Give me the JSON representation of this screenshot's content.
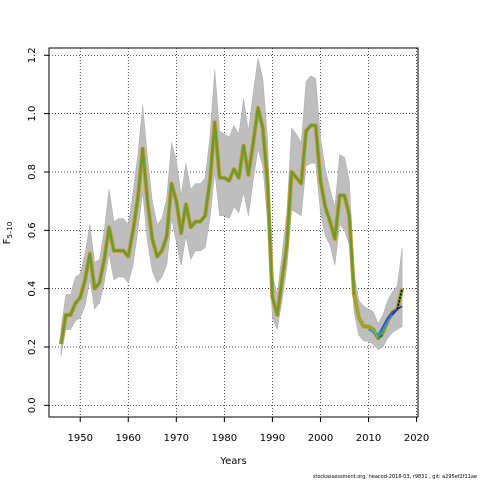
{
  "chart_data": {
    "type": "line",
    "title": "",
    "xlabel": "Years",
    "ylabel_main": "F",
    "ylabel_sub": "5–10",
    "xlim": [
      1943.5,
      2020.3
    ],
    "ylim": [
      -0.04,
      1.225
    ],
    "x_ticks": [
      1950,
      1960,
      1970,
      1980,
      1990,
      2000,
      2010,
      2020
    ],
    "y_ticks": [
      0.0,
      0.2,
      0.4,
      0.6,
      0.8,
      1.0,
      1.2
    ],
    "grid": true,
    "footer": "stockassessment.org, neacod-2018-03, r9831 , git: a295ef2f11ae",
    "colors": {
      "band": "#bebebe",
      "band_edge": "#a8a8a8",
      "main_line": "#6b9b2a",
      "main_line_outline": "#c79a3a",
      "retro_series": [
        "#1a2a9a",
        "#2a4ac0",
        "#3a8ad8",
        "#2aa0a0",
        "#1a7a3a",
        "#9ab02a"
      ],
      "last_year": "#000000"
    },
    "x": [
      1946,
      1947,
      1948,
      1949,
      1950,
      1951,
      1952,
      1953,
      1954,
      1955,
      1956,
      1957,
      1958,
      1959,
      1960,
      1961,
      1962,
      1963,
      1964,
      1965,
      1966,
      1967,
      1968,
      1969,
      1970,
      1971,
      1972,
      1973,
      1974,
      1975,
      1976,
      1977,
      1978,
      1979,
      1980,
      1981,
      1982,
      1983,
      1984,
      1985,
      1986,
      1987,
      1988,
      1989,
      1990,
      1991,
      1992,
      1993,
      1994,
      1995,
      1996,
      1997,
      1998,
      1999,
      2000,
      2001,
      2002,
      2003,
      2004,
      2005,
      2006,
      2007,
      2008,
      2009,
      2010,
      2011,
      2012,
      2013,
      2014,
      2015,
      2016,
      2017
    ],
    "series": [
      {
        "values": [
          0.21,
          0.31,
          0.31,
          0.35,
          0.37,
          0.43,
          0.52,
          0.4,
          0.42,
          0.5,
          0.61,
          0.53,
          0.53,
          0.53,
          0.51,
          0.6,
          0.71,
          0.88,
          0.7,
          0.57,
          0.51,
          0.53,
          0.58,
          0.76,
          0.7,
          0.59,
          0.69,
          0.61,
          0.63,
          0.63,
          0.65,
          0.77,
          0.97,
          0.78,
          0.78,
          0.77,
          0.81,
          0.78,
          0.89,
          0.79,
          0.9,
          1.02,
          0.95,
          0.76,
          0.37,
          0.31,
          0.43,
          0.55,
          0.8,
          0.78,
          0.76,
          0.94,
          0.96,
          0.96,
          0.77,
          0.68,
          0.63,
          0.57,
          0.72,
          0.72,
          0.65,
          0.38,
          0.3,
          0.27,
          0.27,
          0.26,
          0.23,
          0.25,
          0.29,
          0.32,
          0.33,
          0.4
        ],
        "lower": [
          0.17,
          0.26,
          0.26,
          0.29,
          0.3,
          0.34,
          0.43,
          0.33,
          0.35,
          0.42,
          0.52,
          0.43,
          0.44,
          0.44,
          0.42,
          0.48,
          0.6,
          0.73,
          0.56,
          0.46,
          0.42,
          0.44,
          0.48,
          0.64,
          0.56,
          0.48,
          0.58,
          0.5,
          0.53,
          0.53,
          0.54,
          0.64,
          0.8,
          0.65,
          0.65,
          0.64,
          0.68,
          0.66,
          0.73,
          0.65,
          0.77,
          0.88,
          0.82,
          0.63,
          0.3,
          0.26,
          0.36,
          0.47,
          0.67,
          0.66,
          0.65,
          0.82,
          0.83,
          0.83,
          0.66,
          0.58,
          0.55,
          0.48,
          0.62,
          0.6,
          0.55,
          0.32,
          0.24,
          0.22,
          0.22,
          0.21,
          0.19,
          0.2,
          0.23,
          0.25,
          0.26,
          0.27
        ],
        "upper": [
          0.26,
          0.38,
          0.38,
          0.44,
          0.45,
          0.52,
          0.62,
          0.49,
          0.5,
          0.6,
          0.74,
          0.63,
          0.64,
          0.64,
          0.62,
          0.73,
          0.86,
          1.03,
          0.85,
          0.7,
          0.62,
          0.64,
          0.71,
          0.9,
          0.84,
          0.72,
          0.83,
          0.74,
          0.76,
          0.76,
          0.78,
          0.92,
          1.15,
          0.94,
          0.93,
          0.92,
          0.96,
          0.93,
          1.05,
          0.94,
          1.07,
          1.19,
          1.12,
          0.91,
          0.45,
          0.38,
          0.52,
          0.66,
          0.95,
          0.93,
          0.9,
          1.11,
          1.13,
          1.12,
          0.92,
          0.81,
          0.74,
          0.68,
          0.86,
          0.85,
          0.77,
          0.45,
          0.36,
          0.34,
          0.33,
          0.32,
          0.28,
          0.31,
          0.36,
          0.39,
          0.41,
          0.54
        ]
      }
    ],
    "retro_series": [
      {
        "x": [
          2012,
          2013,
          2014,
          2015,
          2016,
          2017
        ],
        "values": [
          0.23,
          0.26,
          0.29,
          0.31,
          0.33,
          0.34
        ]
      },
      {
        "x": [
          2011,
          2012,
          2013,
          2014,
          2015,
          2016
        ],
        "values": [
          0.25,
          0.24,
          0.27,
          0.3,
          0.32,
          0.33
        ]
      },
      {
        "x": [
          2010,
          2011,
          2012,
          2013,
          2014,
          2015
        ],
        "values": [
          0.26,
          0.25,
          0.23,
          0.26,
          0.29,
          0.31
        ]
      },
      {
        "x": [
          2009,
          2010,
          2011,
          2012,
          2013,
          2014
        ],
        "values": [
          0.27,
          0.27,
          0.26,
          0.24,
          0.26,
          0.28
        ]
      },
      {
        "x": [
          2008,
          2009,
          2010,
          2011,
          2012,
          2013
        ],
        "values": [
          0.3,
          0.27,
          0.27,
          0.26,
          0.23,
          0.24
        ]
      },
      {
        "x": [
          2007,
          2008,
          2009,
          2010,
          2011,
          2012
        ],
        "values": [
          0.38,
          0.3,
          0.27,
          0.27,
          0.26,
          0.23
        ]
      }
    ],
    "last_year_segment": {
      "x": [
        2016,
        2017
      ],
      "values": [
        0.33,
        0.4
      ]
    }
  }
}
